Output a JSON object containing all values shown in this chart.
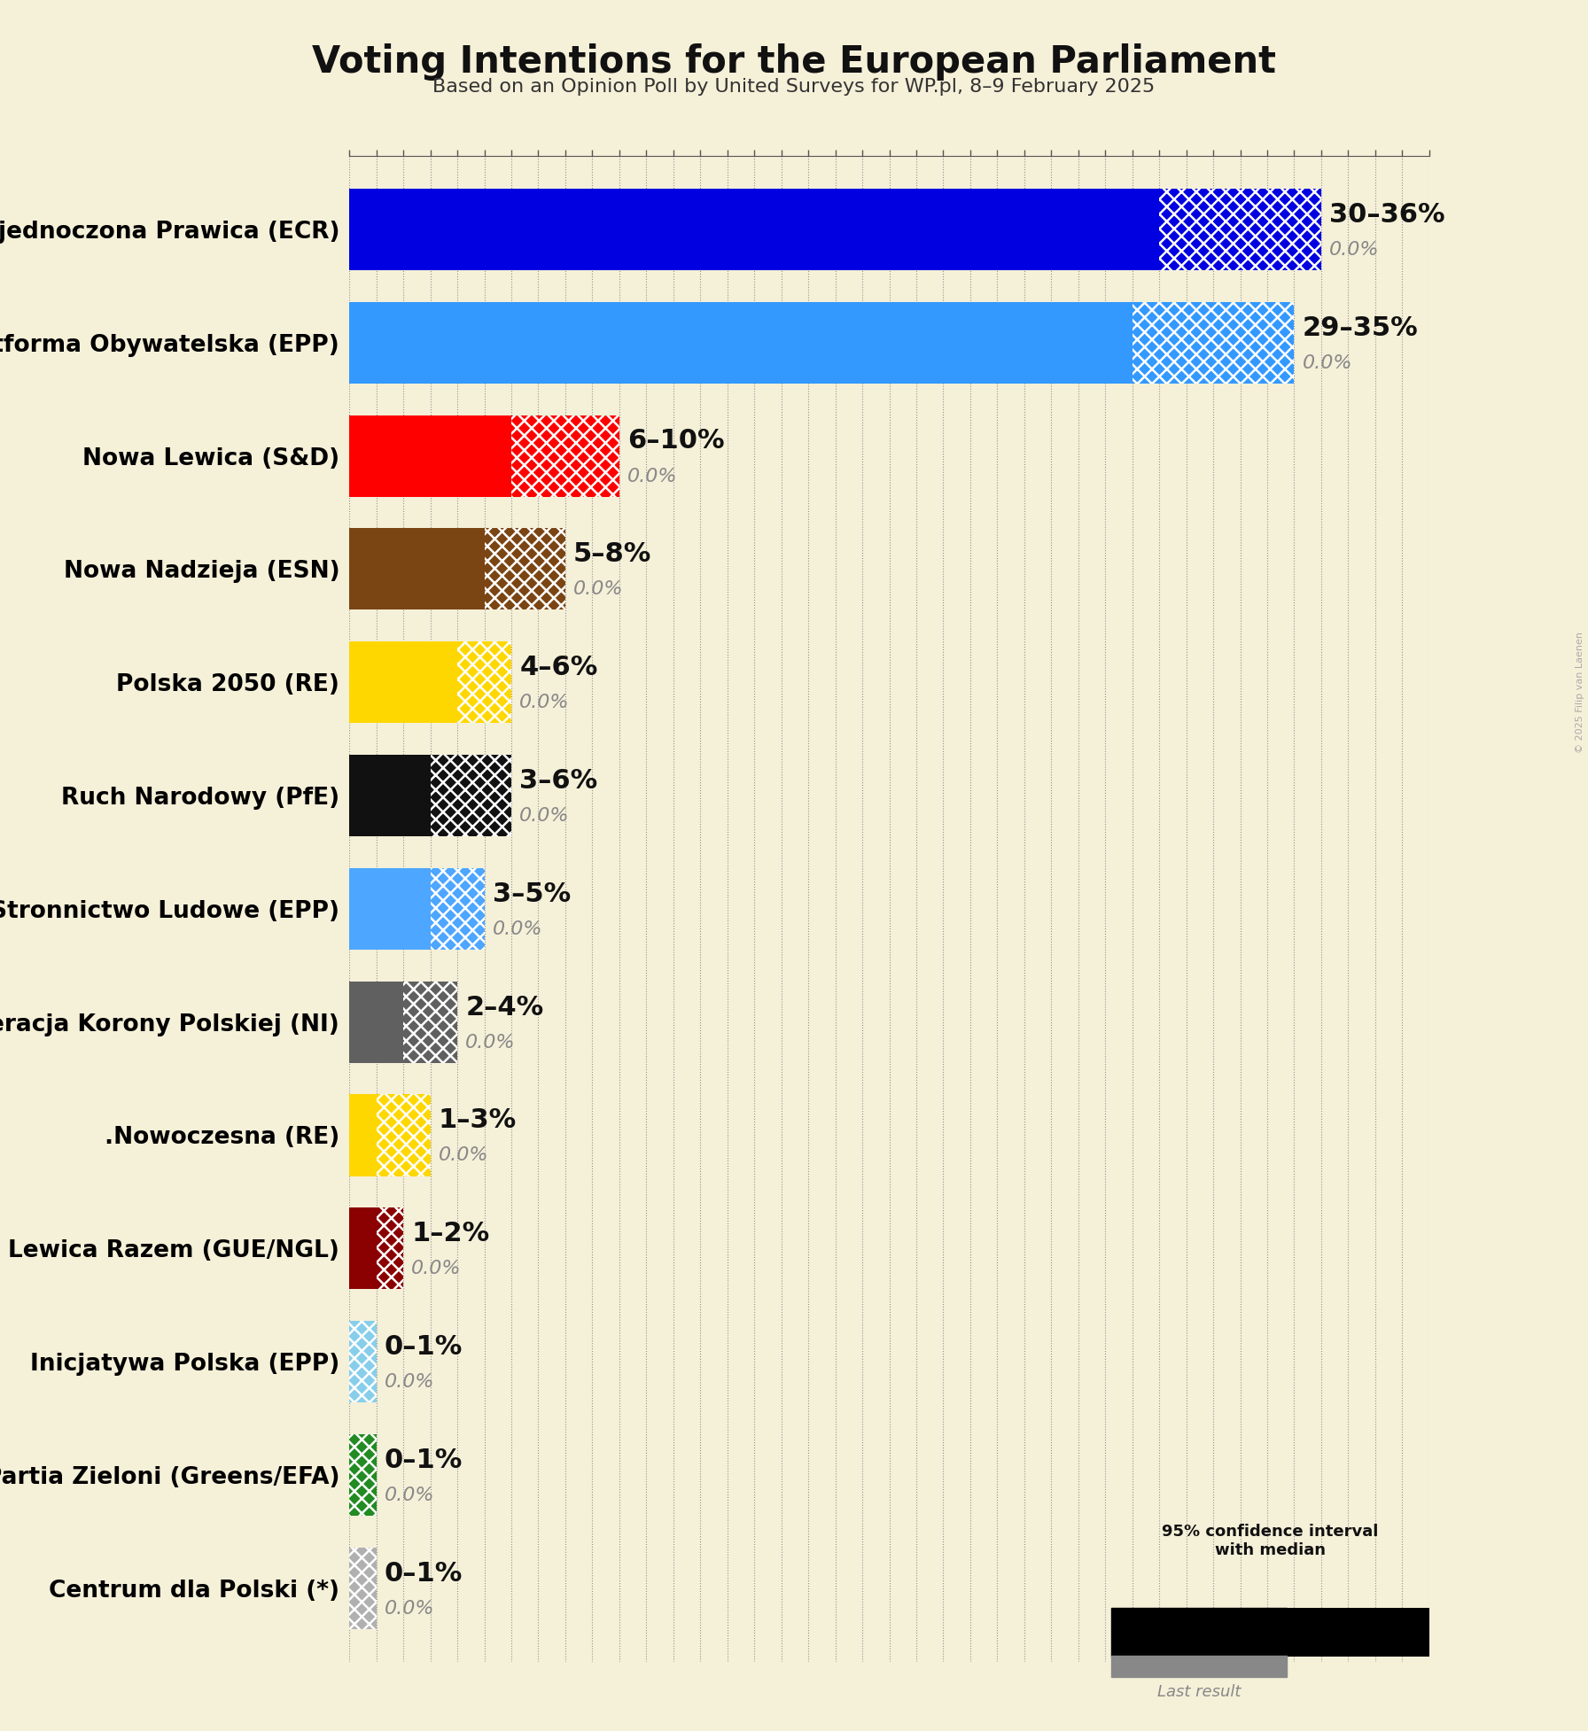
{
  "title": "Voting Intentions for the European Parliament",
  "subtitle": "Based on an Opinion Poll by United Surveys for WP.pl, 8–9 February 2025",
  "copyright": "© 2025 Filip van Laenen",
  "background_color": "#f5f0d8",
  "parties": [
    {
      "name": "Zjednoczona Prawica (ECR)",
      "low": 30,
      "median": 30,
      "high": 36,
      "last": 0.0,
      "color": "#0000e0"
    },
    {
      "name": "Platforma Obywatelska (EPP)",
      "low": 29,
      "median": 29,
      "high": 35,
      "last": 0.0,
      "color": "#3399ff"
    },
    {
      "name": "Nowa Lewica (S&D)",
      "low": 6,
      "median": 6,
      "high": 10,
      "last": 0.0,
      "color": "#ff0000"
    },
    {
      "name": "Nowa Nadzieja (ESN)",
      "low": 5,
      "median": 5,
      "high": 8,
      "last": 0.0,
      "color": "#7b4513"
    },
    {
      "name": "Polska 2050 (RE)",
      "low": 4,
      "median": 4,
      "high": 6,
      "last": 0.0,
      "color": "#ffd700"
    },
    {
      "name": "Ruch Narodowy (PfE)",
      "low": 3,
      "median": 3,
      "high": 6,
      "last": 0.0,
      "color": "#111111"
    },
    {
      "name": "Polskie Stronnictwo Ludowe (EPP)",
      "low": 3,
      "median": 3,
      "high": 5,
      "last": 0.0,
      "color": "#4da6ff"
    },
    {
      "name": "Konfederacja Korony Polskiej (NI)",
      "low": 2,
      "median": 2,
      "high": 4,
      "last": 0.0,
      "color": "#606060"
    },
    {
      "name": ".Nowoczesna (RE)",
      "low": 1,
      "median": 1,
      "high": 3,
      "last": 0.0,
      "color": "#ffd700"
    },
    {
      "name": "Lewica Razem (GUE/NGL)",
      "low": 1,
      "median": 1,
      "high": 2,
      "last": 0.0,
      "color": "#8b0000"
    },
    {
      "name": "Inicjatywa Polska (EPP)",
      "low": 0,
      "median": 0,
      "high": 1,
      "last": 0.0,
      "color": "#87ceeb"
    },
    {
      "name": "Partia Zieloni (Greens/EFA)",
      "low": 0,
      "median": 0,
      "high": 1,
      "last": 0.0,
      "color": "#228b22"
    },
    {
      "name": "Centrum dla Polski (*)",
      "low": 0,
      "median": 0,
      "high": 1,
      "last": 0.0,
      "color": "#b0b0b0"
    }
  ],
  "xlim": [
    0,
    40
  ],
  "bar_height": 0.72,
  "figsize": [
    17.92,
    19.54
  ],
  "dpi": 100,
  "label_fontsize": 19,
  "title_fontsize": 30,
  "subtitle_fontsize": 16,
  "range_fontsize": 22,
  "last_fontsize": 16
}
